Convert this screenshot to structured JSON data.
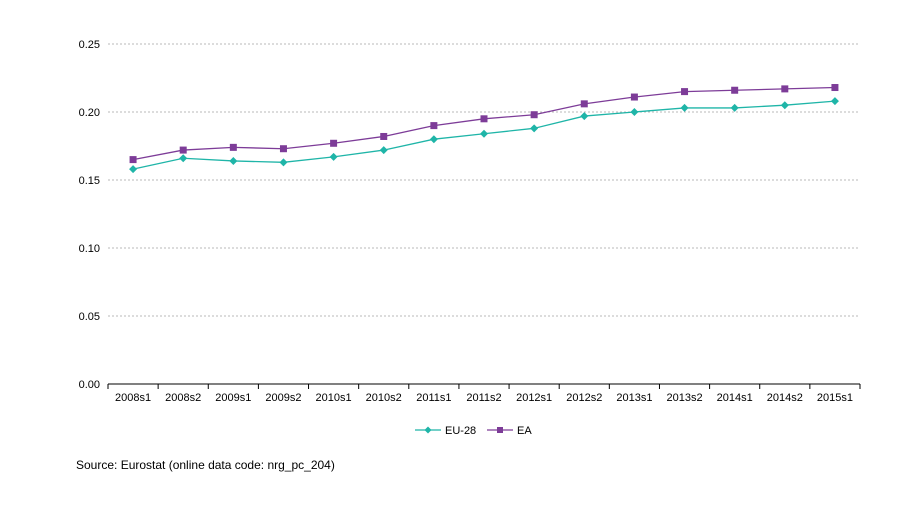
{
  "chart_data": {
    "type": "line",
    "title": "",
    "xlabel": "",
    "ylabel": "",
    "categories": [
      "2008s1",
      "2008s2",
      "2009s1",
      "2009s2",
      "2010s1",
      "2010s2",
      "2011s1",
      "2011s2",
      "2012s1",
      "2012s2",
      "2013s1",
      "2013s2",
      "2014s1",
      "2014s2",
      "2015s1"
    ],
    "ylim": [
      0,
      0.25
    ],
    "yticks": [
      "0.00",
      "0.05",
      "0.10",
      "0.15",
      "0.20",
      "0.25"
    ],
    "grid": "horizontal dashed",
    "legend_position": "bottom-center",
    "series": [
      {
        "name": "EU-28",
        "color": "#1fb5a8",
        "marker": "diamond",
        "values": [
          0.158,
          0.166,
          0.164,
          0.163,
          0.167,
          0.172,
          0.18,
          0.184,
          0.188,
          0.197,
          0.2,
          0.203,
          0.203,
          0.205,
          0.208
        ]
      },
      {
        "name": "EA",
        "color": "#7d3c98",
        "marker": "square",
        "values": [
          0.165,
          0.172,
          0.174,
          0.173,
          0.177,
          0.182,
          0.19,
          0.195,
          0.198,
          0.206,
          0.211,
          0.215,
          0.216,
          0.217,
          0.218
        ]
      }
    ]
  },
  "source": "Source: Eurostat (online data code: nrg_pc_204)"
}
